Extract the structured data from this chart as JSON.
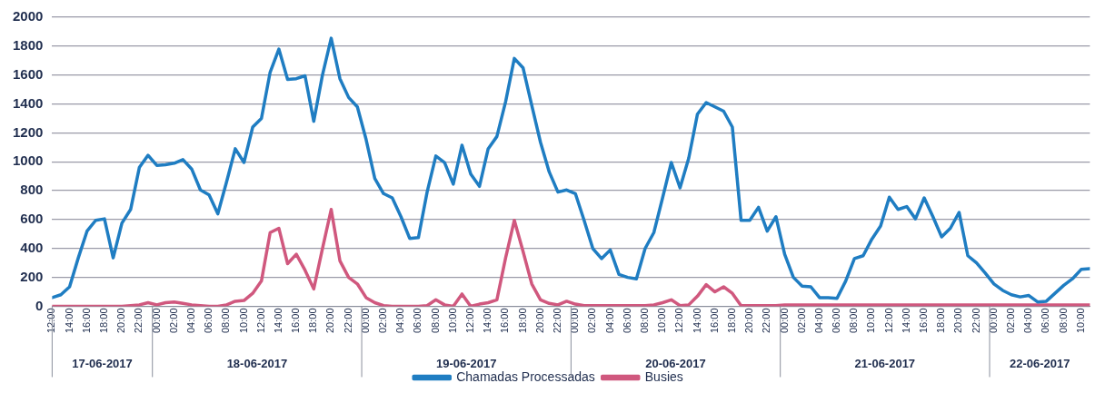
{
  "chart_data": {
    "type": "line",
    "x": [
      "2017-06-17T12:00",
      "2017-06-17T13:00",
      "2017-06-17T14:00",
      "2017-06-17T15:00",
      "2017-06-17T16:00",
      "2017-06-17T17:00",
      "2017-06-17T18:00",
      "2017-06-17T19:00",
      "2017-06-17T20:00",
      "2017-06-17T21:00",
      "2017-06-17T22:00",
      "2017-06-17T23:00",
      "2017-06-18T00:00",
      "2017-06-18T01:00",
      "2017-06-18T02:00",
      "2017-06-18T03:00",
      "2017-06-18T04:00",
      "2017-06-18T05:00",
      "2017-06-18T06:00",
      "2017-06-18T07:00",
      "2017-06-18T08:00",
      "2017-06-18T09:00",
      "2017-06-18T10:00",
      "2017-06-18T11:00",
      "2017-06-18T12:00",
      "2017-06-18T13:00",
      "2017-06-18T14:00",
      "2017-06-18T15:00",
      "2017-06-18T16:00",
      "2017-06-18T17:00",
      "2017-06-18T18:00",
      "2017-06-18T19:00",
      "2017-06-18T20:00",
      "2017-06-18T21:00",
      "2017-06-18T22:00",
      "2017-06-18T23:00",
      "2017-06-19T00:00",
      "2017-06-19T01:00",
      "2017-06-19T02:00",
      "2017-06-19T03:00",
      "2017-06-19T04:00",
      "2017-06-19T05:00",
      "2017-06-19T06:00",
      "2017-06-19T07:00",
      "2017-06-19T08:00",
      "2017-06-19T09:00",
      "2017-06-19T10:00",
      "2017-06-19T11:00",
      "2017-06-19T12:00",
      "2017-06-19T13:00",
      "2017-06-19T14:00",
      "2017-06-19T15:00",
      "2017-06-19T16:00",
      "2017-06-19T17:00",
      "2017-06-19T18:00",
      "2017-06-19T19:00",
      "2017-06-19T20:00",
      "2017-06-19T21:00",
      "2017-06-19T22:00",
      "2017-06-19T23:00",
      "2017-06-20T00:00",
      "2017-06-20T01:00",
      "2017-06-20T02:00",
      "2017-06-20T03:00",
      "2017-06-20T04:00",
      "2017-06-20T05:00",
      "2017-06-20T06:00",
      "2017-06-20T07:00",
      "2017-06-20T08:00",
      "2017-06-20T09:00",
      "2017-06-20T10:00",
      "2017-06-20T11:00",
      "2017-06-20T12:00",
      "2017-06-20T13:00",
      "2017-06-20T14:00",
      "2017-06-20T15:00",
      "2017-06-20T16:00",
      "2017-06-20T17:00",
      "2017-06-20T18:00",
      "2017-06-20T19:00",
      "2017-06-20T20:00",
      "2017-06-20T21:00",
      "2017-06-20T22:00",
      "2017-06-20T23:00",
      "2017-06-21T00:00",
      "2017-06-21T01:00",
      "2017-06-21T02:00",
      "2017-06-21T03:00",
      "2017-06-21T04:00",
      "2017-06-21T05:00",
      "2017-06-21T06:00",
      "2017-06-21T07:00",
      "2017-06-21T08:00",
      "2017-06-21T09:00",
      "2017-06-21T10:00",
      "2017-06-21T11:00",
      "2017-06-21T12:00",
      "2017-06-21T13:00",
      "2017-06-21T14:00",
      "2017-06-21T15:00",
      "2017-06-21T16:00",
      "2017-06-21T17:00",
      "2017-06-21T18:00",
      "2017-06-21T19:00",
      "2017-06-21T20:00",
      "2017-06-21T21:00",
      "2017-06-21T22:00",
      "2017-06-21T23:00",
      "2017-06-22T00:00",
      "2017-06-22T01:00",
      "2017-06-22T02:00",
      "2017-06-22T03:00",
      "2017-06-22T04:00",
      "2017-06-22T05:00",
      "2017-06-22T06:00",
      "2017-06-22T07:00",
      "2017-06-22T08:00",
      "2017-06-22T09:00",
      "2017-06-22T10:00",
      "2017-06-22T11:00"
    ],
    "series": [
      {
        "name": "Chamadas Processadas",
        "color": "#1f7dc2",
        "values": [
          60,
          80,
          135,
          335,
          520,
          595,
          605,
          335,
          575,
          670,
          960,
          1045,
          975,
          980,
          990,
          1015,
          950,
          805,
          770,
          640,
          860,
          1090,
          995,
          1240,
          1300,
          1620,
          1780,
          1570,
          1575,
          1595,
          1280,
          1600,
          1855,
          1575,
          1445,
          1380,
          1155,
          885,
          780,
          750,
          620,
          470,
          475,
          790,
          1040,
          995,
          845,
          1115,
          915,
          830,
          1090,
          1175,
          1415,
          1715,
          1650,
          1390,
          1135,
          930,
          790,
          805,
          780,
          595,
          400,
          330,
          390,
          220,
          200,
          190,
          400,
          510,
          750,
          995,
          820,
          1025,
          1330,
          1410,
          1380,
          1350,
          1240,
          595,
          595,
          685,
          520,
          620,
          360,
          200,
          140,
          135,
          60,
          60,
          55,
          175,
          330,
          350,
          465,
          555,
          755,
          670,
          690,
          605,
          750,
          620,
          480,
          540,
          650,
          350,
          300,
          230,
          155,
          110,
          80,
          65,
          75,
          30,
          35,
          90,
          145,
          190,
          255,
          260
        ]
      },
      {
        "name": "Busies",
        "color": "#d0587e",
        "values": [
          0,
          0,
          0,
          0,
          0,
          0,
          0,
          0,
          0,
          5,
          10,
          25,
          10,
          25,
          30,
          20,
          10,
          5,
          0,
          0,
          10,
          35,
          40,
          90,
          175,
          510,
          540,
          295,
          360,
          250,
          120,
          400,
          670,
          315,
          200,
          155,
          60,
          25,
          5,
          0,
          0,
          0,
          0,
          5,
          45,
          10,
          0,
          85,
          0,
          15,
          25,
          45,
          335,
          595,
          380,
          155,
          45,
          20,
          10,
          35,
          15,
          5,
          5,
          5,
          5,
          5,
          5,
          5,
          5,
          10,
          25,
          45,
          5,
          10,
          70,
          150,
          100,
          135,
          90,
          5,
          5,
          5,
          5,
          5,
          10,
          10,
          10,
          10,
          10,
          10,
          10,
          10,
          10,
          10,
          10,
          10,
          10,
          10,
          10,
          10,
          10,
          10,
          10,
          10,
          10,
          10,
          10,
          10,
          10,
          10,
          10,
          10,
          10,
          10,
          10,
          10,
          10,
          10,
          10,
          10
        ]
      }
    ],
    "xlim": [
      "2017-06-17T12:00",
      "2017-06-22T11:00"
    ],
    "xticks": [
      {
        "value": "2017-06-17T12:00",
        "label": "12:00"
      },
      {
        "value": "2017-06-17T14:00",
        "label": "14:00"
      },
      {
        "value": "2017-06-17T16:00",
        "label": "16:00"
      },
      {
        "value": "2017-06-17T18:00",
        "label": "18:00"
      },
      {
        "value": "2017-06-17T20:00",
        "label": "20:00"
      },
      {
        "value": "2017-06-17T22:00",
        "label": "22:00"
      },
      {
        "value": "2017-06-18T00:00",
        "label": "00:00"
      },
      {
        "value": "2017-06-18T02:00",
        "label": "02:00"
      },
      {
        "value": "2017-06-18T04:00",
        "label": "04:00"
      },
      {
        "value": "2017-06-18T06:00",
        "label": "06:00"
      },
      {
        "value": "2017-06-18T08:00",
        "label": "08:00"
      },
      {
        "value": "2017-06-18T10:00",
        "label": "10:00"
      },
      {
        "value": "2017-06-18T12:00",
        "label": "12:00"
      },
      {
        "value": "2017-06-18T14:00",
        "label": "14:00"
      },
      {
        "value": "2017-06-18T16:00",
        "label": "16:00"
      },
      {
        "value": "2017-06-18T18:00",
        "label": "18:00"
      },
      {
        "value": "2017-06-18T20:00",
        "label": "20:00"
      },
      {
        "value": "2017-06-18T22:00",
        "label": "22:00"
      },
      {
        "value": "2017-06-19T00:00",
        "label": "00:00"
      },
      {
        "value": "2017-06-19T02:00",
        "label": "02:00"
      },
      {
        "value": "2017-06-19T04:00",
        "label": "04:00"
      },
      {
        "value": "2017-06-19T06:00",
        "label": "06:00"
      },
      {
        "value": "2017-06-19T08:00",
        "label": "08:00"
      },
      {
        "value": "2017-06-19T10:00",
        "label": "10:00"
      },
      {
        "value": "2017-06-19T12:00",
        "label": "12:00"
      },
      {
        "value": "2017-06-19T14:00",
        "label": "14:00"
      },
      {
        "value": "2017-06-19T16:00",
        "label": "16:00"
      },
      {
        "value": "2017-06-19T18:00",
        "label": "18:00"
      },
      {
        "value": "2017-06-19T20:00",
        "label": "20:00"
      },
      {
        "value": "2017-06-19T22:00",
        "label": "22:00"
      },
      {
        "value": "2017-06-20T00:00",
        "label": "00:00"
      },
      {
        "value": "2017-06-20T02:00",
        "label": "02:00"
      },
      {
        "value": "2017-06-20T04:00",
        "label": "04:00"
      },
      {
        "value": "2017-06-20T06:00",
        "label": "06:00"
      },
      {
        "value": "2017-06-20T08:00",
        "label": "08:00"
      },
      {
        "value": "2017-06-20T10:00",
        "label": "10:00"
      },
      {
        "value": "2017-06-20T12:00",
        "label": "12:00"
      },
      {
        "value": "2017-06-20T14:00",
        "label": "14:00"
      },
      {
        "value": "2017-06-20T16:00",
        "label": "16:00"
      },
      {
        "value": "2017-06-20T18:00",
        "label": "18:00"
      },
      {
        "value": "2017-06-20T20:00",
        "label": "20:00"
      },
      {
        "value": "2017-06-20T22:00",
        "label": "22:00"
      },
      {
        "value": "2017-06-21T00:00",
        "label": "00:00"
      },
      {
        "value": "2017-06-21T02:00",
        "label": "02:00"
      },
      {
        "value": "2017-06-21T04:00",
        "label": "04:00"
      },
      {
        "value": "2017-06-21T06:00",
        "label": "06:00"
      },
      {
        "value": "2017-06-21T08:00",
        "label": "08:00"
      },
      {
        "value": "2017-06-21T10:00",
        "label": "10:00"
      },
      {
        "value": "2017-06-21T12:00",
        "label": "12:00"
      },
      {
        "value": "2017-06-21T14:00",
        "label": "14:00"
      },
      {
        "value": "2017-06-21T16:00",
        "label": "16:00"
      },
      {
        "value": "2017-06-21T18:00",
        "label": "18:00"
      },
      {
        "value": "2017-06-21T20:00",
        "label": "20:00"
      },
      {
        "value": "2017-06-21T22:00",
        "label": "22:00"
      },
      {
        "value": "2017-06-22T00:00",
        "label": "00:00"
      },
      {
        "value": "2017-06-22T02:00",
        "label": "02:00"
      },
      {
        "value": "2017-06-22T04:00",
        "label": "04:00"
      },
      {
        "value": "2017-06-22T06:00",
        "label": "06:00"
      },
      {
        "value": "2017-06-22T08:00",
        "label": "08:00"
      },
      {
        "value": "2017-06-22T10:00",
        "label": "10:00"
      }
    ],
    "ylim": [
      0,
      2000
    ],
    "yticks": [
      0,
      200,
      400,
      600,
      800,
      1000,
      1200,
      1400,
      1600,
      1800,
      2000
    ],
    "annotations": [
      "17-06-2017",
      "18-06-2017",
      "19-06-2017",
      "20-06-2017",
      "21-06-2017",
      "22-06-2017"
    ],
    "grid": "y",
    "legend": "bottom",
    "marker": "none",
    "line_style": "solid"
  }
}
